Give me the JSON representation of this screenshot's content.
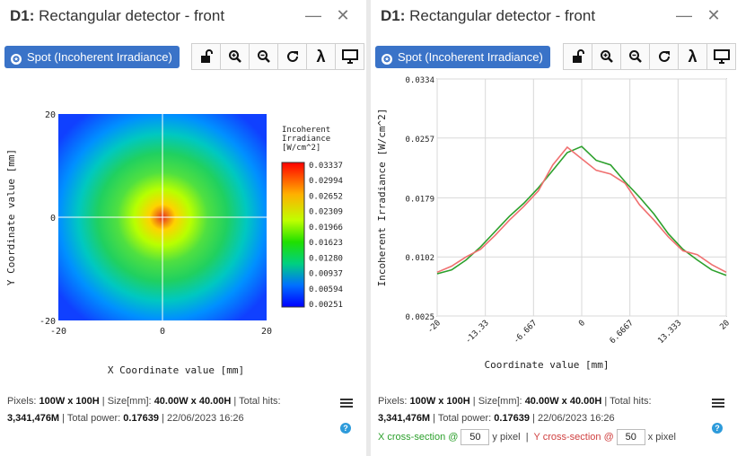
{
  "left_panel": {
    "title_prefix": "D1:",
    "title_rest": " Rectangular detector - front",
    "spot_button": "Spot (Incoherent Irradiance)",
    "colorbar_title": [
      "Incoherent",
      "Irradiance",
      "[W/cm^2]"
    ],
    "footer": {
      "pixels_label": "Pixels:",
      "pixels_value": "100W x 100H",
      "size_label": "Size[mm]:",
      "size_value": "40.00W x 40.00H",
      "hits_label": "Total hits:",
      "hits_value": "3,341,476M",
      "power_label": "Total power:",
      "power_value": "0.17639",
      "date": "22/06/2023 16:26"
    }
  },
  "right_panel": {
    "title_prefix": "D1:",
    "title_rest": " Rectangular detector - front",
    "spot_button": "Spot (Incoherent Irradiance)",
    "footer": {
      "pixels_label": "Pixels:",
      "pixels_value": "100W x 100H",
      "size_label": "Size[mm]:",
      "size_value": "40.00W x 40.00H",
      "hits_label": "Total hits:",
      "hits_value": "3,341,476M",
      "power_label": "Total power:",
      "power_value": "0.17639",
      "date": "22/06/2023 16:26"
    },
    "xsection": {
      "x_label": "X cross-section @",
      "x_value": "50",
      "x_suffix": "y pixel",
      "y_label": "Y cross-section @",
      "y_value": "50",
      "y_suffix": "x pixel"
    }
  },
  "toolbar_icons": [
    "lock-open-icon",
    "zoom-in-icon",
    "zoom-out-icon",
    "refresh-icon",
    "lambda-icon",
    "monitor-icon"
  ],
  "colors": {
    "accent": "#3a73c8",
    "green_series": "#2ca02c",
    "red_series": "#f07070"
  },
  "chart_data": [
    {
      "type": "heatmap",
      "xlabel": "X Coordinate value [mm]",
      "ylabel": "Y Coordinate value [mm]",
      "x_ticks": [
        "-20",
        "0",
        "20"
      ],
      "y_ticks": [
        "20",
        "0",
        "-20"
      ],
      "xlim": [
        -20,
        20
      ],
      "ylim": [
        -20,
        20
      ],
      "colorbar_ticks": [
        "0.03337",
        "0.02994",
        "0.02652",
        "0.02309",
        "0.01966",
        "0.01623",
        "0.01280",
        "0.00937",
        "0.00594",
        "0.00251"
      ],
      "value_range": [
        0.00251,
        0.03337
      ],
      "grid": false
    },
    {
      "type": "line",
      "xlabel": "Coordinate value [mm]",
      "ylabel": "Incoherent Irradiance [W/cm^2]",
      "x_ticks": [
        "-20",
        "-13.33",
        "-6.667",
        "0",
        "6.6667",
        "13.333",
        "20"
      ],
      "y_ticks": [
        "0.0334",
        "0.0257",
        "0.0179",
        "0.0102",
        "0.0025"
      ],
      "xlim": [
        -20,
        20
      ],
      "ylim": [
        0.0025,
        0.0334
      ],
      "grid": true,
      "series": [
        {
          "color": "#2ca02c",
          "x": [
            -20,
            -18,
            -16,
            -14,
            -12,
            -10,
            -8,
            -6,
            -4,
            -2,
            0,
            2,
            4,
            6,
            8,
            10,
            12,
            14,
            16,
            18,
            20
          ],
          "y": [
            0.008,
            0.0085,
            0.0098,
            0.0115,
            0.0135,
            0.0155,
            0.0172,
            0.0192,
            0.0215,
            0.0238,
            0.0246,
            0.0228,
            0.0222,
            0.02,
            0.018,
            0.0158,
            0.0132,
            0.0112,
            0.0098,
            0.0085,
            0.0078
          ]
        },
        {
          "color": "#f07070",
          "x": [
            -20,
            -18,
            -16,
            -14,
            -12,
            -10,
            -8,
            -6,
            -4,
            -2,
            0,
            2,
            4,
            6,
            8,
            10,
            12,
            14,
            16,
            18,
            20
          ],
          "y": [
            0.0082,
            0.009,
            0.0102,
            0.0112,
            0.013,
            0.015,
            0.0168,
            0.0188,
            0.0222,
            0.0245,
            0.023,
            0.0215,
            0.021,
            0.0198,
            0.017,
            0.015,
            0.0128,
            0.011,
            0.0105,
            0.0092,
            0.0082
          ]
        }
      ]
    }
  ]
}
